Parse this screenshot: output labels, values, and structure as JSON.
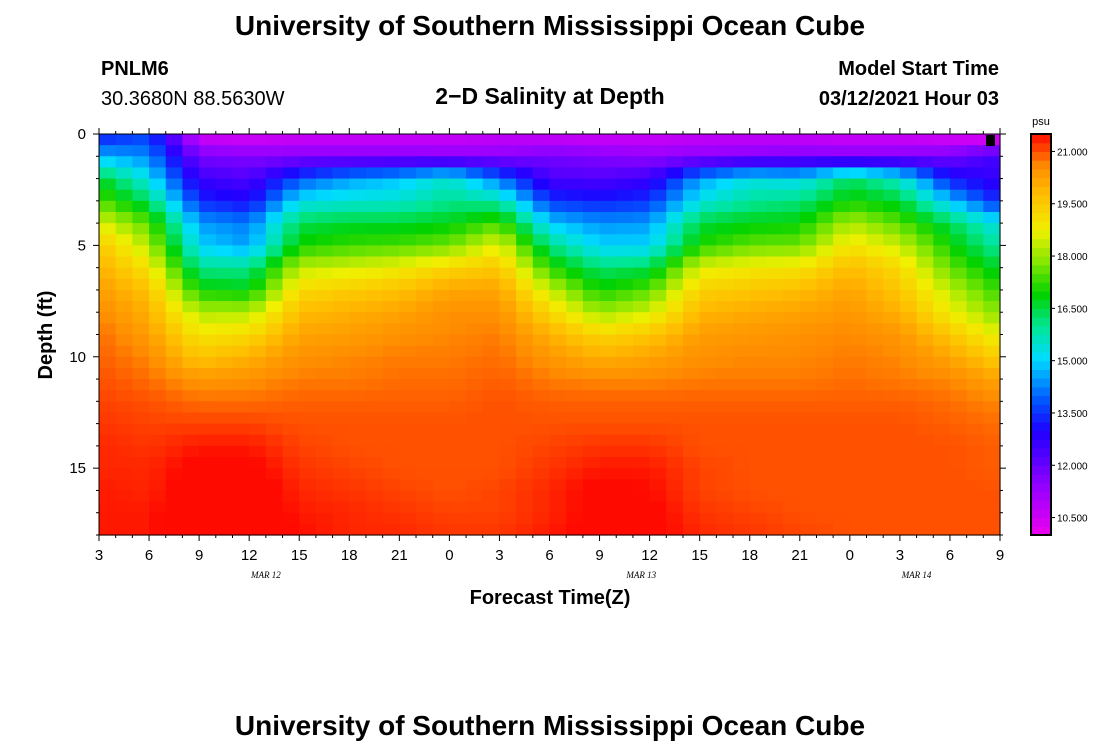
{
  "header": {
    "title": "University of Southern Mississippi Ocean Cube",
    "station_id": "PNLM6",
    "coordinates": "30.3680N 88.5630W",
    "chart_title": "2−D Salinity at Depth",
    "model_start_label": "Model Start Time",
    "model_start_value": "03/12/2021 Hour 03"
  },
  "footer": {
    "title": "University of Southern Mississippi Ocean Cube"
  },
  "colors": {
    "background": "#ffffff",
    "text": "#000000",
    "marker": "#000000"
  },
  "chart_data": {
    "type": "heatmap",
    "title": "2−D Salinity at Depth",
    "xlabel": "Forecast Time(Z)",
    "ylabel": "Depth (ft)",
    "x_hours_range": [
      3,
      57
    ],
    "y_depth_range": [
      0,
      18
    ],
    "x_ticks": [
      {
        "hour": 3,
        "label": "3"
      },
      {
        "hour": 6,
        "label": "6"
      },
      {
        "hour": 9,
        "label": "9"
      },
      {
        "hour": 12,
        "label": "12"
      },
      {
        "hour": 15,
        "label": "15"
      },
      {
        "hour": 18,
        "label": "18"
      },
      {
        "hour": 21,
        "label": "21"
      },
      {
        "hour": 24,
        "label": "0"
      },
      {
        "hour": 27,
        "label": "3"
      },
      {
        "hour": 30,
        "label": "6"
      },
      {
        "hour": 33,
        "label": "9"
      },
      {
        "hour": 36,
        "label": "12"
      },
      {
        "hour": 39,
        "label": "15"
      },
      {
        "hour": 42,
        "label": "18"
      },
      {
        "hour": 45,
        "label": "21"
      },
      {
        "hour": 48,
        "label": "0"
      },
      {
        "hour": 51,
        "label": "3"
      },
      {
        "hour": 54,
        "label": "6"
      },
      {
        "hour": 57,
        "label": "9"
      }
    ],
    "date_labels": [
      {
        "hour": 13,
        "label": "MAR 12"
      },
      {
        "hour": 35.5,
        "label": "MAR 13"
      },
      {
        "hour": 52,
        "label": "MAR 14"
      }
    ],
    "y_ticks": [
      0,
      5,
      10,
      15
    ],
    "colorbar": {
      "unit": "psu",
      "min": 10.0,
      "max": 21.5,
      "ticks": [
        "21.000",
        "19.500",
        "18.000",
        "16.500",
        "15.000",
        "13.500",
        "12.000",
        "10.500"
      ]
    },
    "series": [
      {
        "name": "salinity_psu",
        "x_hours": [
          3,
          6,
          9,
          12,
          15,
          18,
          21,
          24,
          27,
          30,
          33,
          36,
          39,
          42,
          45,
          48,
          51,
          54,
          57
        ],
        "depths_ft": [
          0.25,
          1,
          2,
          3,
          4,
          5,
          6,
          7,
          8,
          9,
          10,
          11,
          12,
          13,
          14,
          15,
          16,
          17,
          18
        ],
        "values": [
          [
            13.5,
            13.8,
            10.7,
            10.6,
            10.7,
            10.7,
            10.7,
            10.7,
            10.8,
            10.8,
            10.7,
            10.7,
            10.8,
            10.8,
            10.8,
            10.7,
            10.7,
            10.6,
            10.5
          ],
          [
            14.7,
            14.3,
            11.8,
            11.6,
            11.6,
            11.6,
            11.6,
            11.5,
            11.5,
            11.8,
            11.6,
            11.4,
            11.5,
            11.6,
            11.7,
            11.6,
            11.6,
            11.8,
            12.6
          ],
          [
            16.7,
            15.2,
            12.6,
            12.3,
            13.8,
            14.5,
            14.8,
            15.5,
            14.1,
            12.4,
            12.3,
            12.6,
            14.5,
            15.3,
            15.1,
            16.3,
            15.5,
            13.2,
            12.6
          ],
          [
            17.5,
            16.3,
            13.4,
            13.0,
            15.2,
            15.4,
            15.5,
            16.0,
            15.8,
            13.5,
            13.3,
            13.5,
            15.3,
            15.9,
            16.1,
            17.0,
            16.6,
            14.8,
            13.3
          ],
          [
            18.6,
            17.5,
            14.5,
            14.2,
            16.4,
            16.6,
            16.6,
            16.8,
            17.4,
            14.9,
            14.4,
            14.5,
            16.5,
            16.8,
            16.9,
            18.2,
            17.5,
            16.4,
            15.2
          ],
          [
            19.6,
            18.2,
            15.0,
            14.5,
            17.0,
            17.3,
            17.4,
            17.7,
            18.7,
            16.1,
            15.0,
            15.0,
            17.1,
            17.6,
            17.7,
            19.0,
            18.4,
            17.0,
            15.8
          ],
          [
            20.0,
            19.0,
            16.0,
            16.0,
            18.3,
            18.5,
            18.8,
            19.3,
            19.6,
            17.2,
            16.2,
            16.4,
            18.6,
            18.9,
            19.0,
            19.8,
            19.2,
            17.6,
            16.6
          ],
          [
            20.3,
            19.7,
            17.0,
            16.8,
            19.2,
            19.5,
            19.7,
            20.2,
            20.2,
            18.4,
            17.0,
            17.5,
            19.4,
            19.6,
            19.8,
            20.2,
            19.6,
            18.3,
            17.2
          ],
          [
            20.6,
            20.0,
            18.2,
            18.2,
            19.8,
            20.0,
            20.2,
            20.5,
            20.5,
            19.3,
            18.0,
            18.5,
            19.9,
            20.1,
            20.2,
            20.4,
            20.0,
            18.8,
            17.8
          ],
          [
            20.8,
            20.3,
            19.0,
            19.2,
            20.2,
            20.3,
            20.5,
            20.6,
            20.7,
            20.0,
            19.3,
            19.6,
            20.3,
            20.4,
            20.5,
            20.6,
            20.4,
            19.6,
            18.6
          ],
          [
            20.9,
            20.6,
            19.6,
            20.0,
            20.5,
            20.6,
            20.7,
            20.7,
            20.8,
            20.4,
            20.0,
            20.2,
            20.5,
            20.6,
            20.6,
            20.7,
            20.6,
            20.2,
            19.4
          ],
          [
            21.0,
            20.8,
            20.4,
            20.5,
            20.7,
            20.7,
            20.8,
            20.8,
            20.9,
            20.7,
            20.6,
            20.6,
            20.7,
            20.7,
            20.7,
            20.8,
            20.7,
            20.6,
            20.2
          ],
          [
            21.1,
            21.0,
            20.8,
            20.8,
            20.9,
            20.9,
            20.9,
            20.9,
            21.0,
            20.9,
            20.9,
            20.9,
            20.9,
            20.9,
            20.9,
            20.9,
            20.9,
            20.8,
            20.6
          ],
          [
            21.2,
            21.1,
            21.1,
            21.1,
            21.0,
            21.0,
            21.0,
            21.0,
            21.0,
            21.0,
            21.0,
            21.0,
            21.0,
            21.0,
            21.0,
            21.0,
            21.0,
            20.9,
            20.8
          ],
          [
            21.3,
            21.2,
            21.4,
            21.4,
            21.1,
            21.0,
            21.0,
            21.0,
            21.0,
            21.1,
            21.2,
            21.2,
            21.0,
            21.0,
            21.0,
            21.0,
            21.0,
            21.0,
            20.9
          ],
          [
            21.3,
            21.3,
            21.6,
            21.6,
            21.2,
            21.1,
            21.0,
            21.0,
            21.0,
            21.2,
            21.4,
            21.4,
            21.1,
            21.0,
            21.0,
            21.0,
            21.0,
            21.0,
            20.9
          ],
          [
            21.4,
            21.3,
            21.8,
            21.8,
            21.3,
            21.2,
            21.1,
            21.0,
            21.1,
            21.3,
            21.6,
            21.5,
            21.1,
            21.0,
            21.0,
            21.0,
            21.0,
            21.0,
            21.0
          ],
          [
            21.4,
            21.4,
            21.9,
            21.8,
            21.4,
            21.3,
            21.2,
            21.1,
            21.1,
            21.3,
            21.6,
            21.6,
            21.2,
            21.1,
            21.0,
            21.0,
            21.0,
            21.0,
            21.0
          ],
          [
            21.4,
            21.4,
            21.9,
            21.8,
            21.5,
            21.3,
            21.3,
            21.2,
            21.2,
            21.4,
            21.7,
            21.6,
            21.3,
            21.2,
            21.1,
            21.0,
            21.0,
            21.0,
            21.0
          ]
        ]
      }
    ]
  }
}
